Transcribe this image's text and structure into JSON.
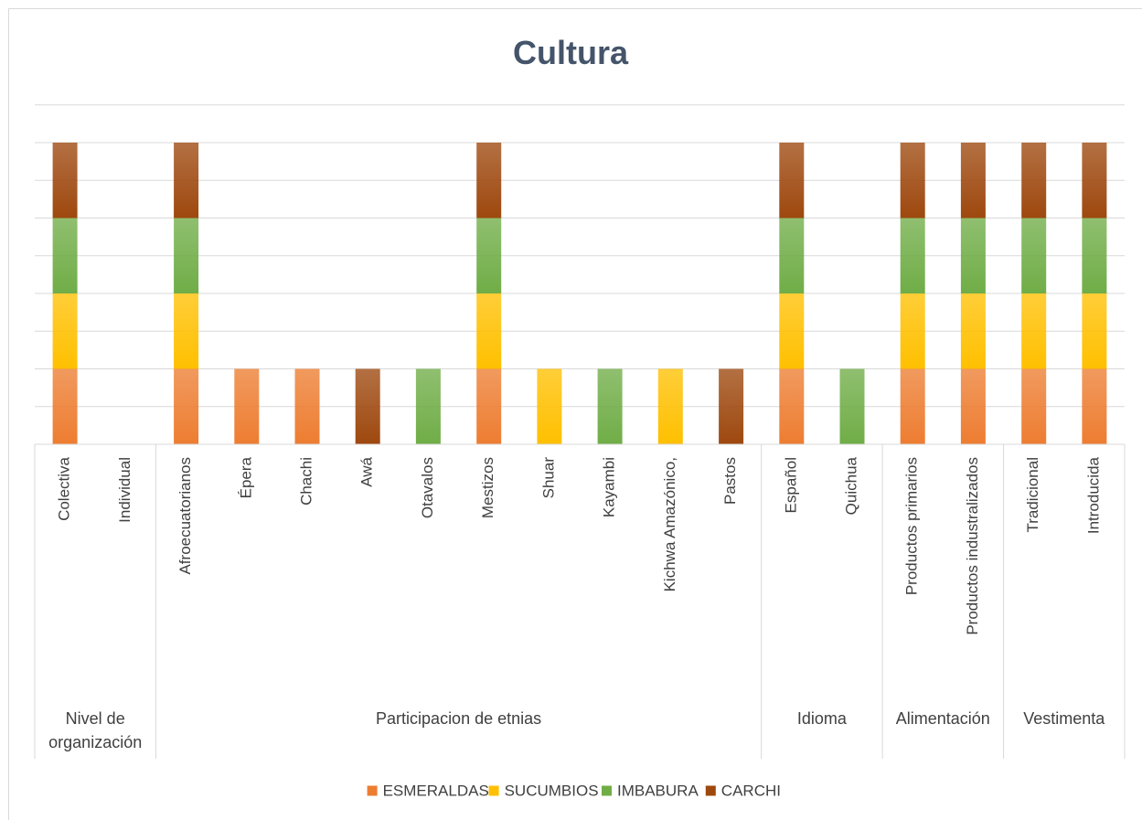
{
  "chart_data": {
    "type": "bar",
    "stacked": true,
    "title": "Cultura",
    "xlabel": "",
    "ylabel": "",
    "ylim": [
      0,
      4
    ],
    "grid": true,
    "legend_position": "bottom",
    "categories": [
      "Colectiva",
      "Individual",
      "Afroecuatorianos",
      "Épera",
      "Chachi",
      "Awá",
      "Otavalos",
      "Mestizos",
      "Shuar",
      "Kayambi",
      "Kichwa Amazónico,",
      "Pastos",
      "Español",
      "Quichua",
      "Productos primarios",
      "Productos industralizados",
      "Tradicional",
      "Introducida"
    ],
    "groups": [
      {
        "label_lines": [
          "Nivel de",
          "organización"
        ],
        "count": 2
      },
      {
        "label_lines": [
          "Participacion de etnias"
        ],
        "count": 10
      },
      {
        "label_lines": [
          "Idioma"
        ],
        "count": 2
      },
      {
        "label_lines": [
          "Alimentación"
        ],
        "count": 2
      },
      {
        "label_lines": [
          "Vestimenta"
        ],
        "count": 2
      }
    ],
    "series": [
      {
        "name": "ESMERALDAS",
        "color": "#ed7d31",
        "values": [
          1,
          0,
          1,
          1,
          1,
          0,
          0,
          1,
          0,
          0,
          0,
          0,
          1,
          0,
          1,
          1,
          1,
          1
        ]
      },
      {
        "name": "SUCUMBIOS",
        "color": "#ffc000",
        "values": [
          1,
          0,
          1,
          0,
          0,
          0,
          0,
          1,
          1,
          0,
          1,
          0,
          1,
          0,
          1,
          1,
          1,
          1
        ]
      },
      {
        "name": "IMBABURA",
        "color": "#70ad47",
        "values": [
          1,
          0,
          1,
          0,
          0,
          0,
          1,
          1,
          0,
          1,
          0,
          0,
          1,
          1,
          1,
          1,
          1,
          1
        ]
      },
      {
        "name": "CARCHI",
        "color": "#9e480e",
        "values": [
          1,
          0,
          1,
          0,
          0,
          1,
          0,
          1,
          0,
          0,
          0,
          1,
          1,
          0,
          1,
          1,
          1,
          1
        ]
      }
    ]
  }
}
